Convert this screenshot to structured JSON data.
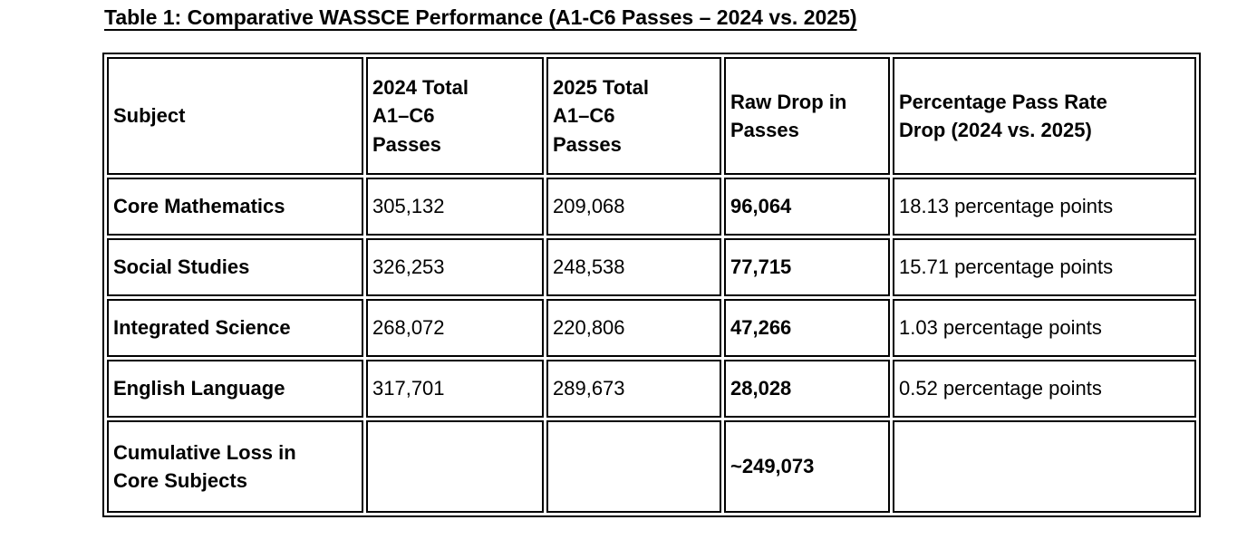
{
  "page": {
    "title": "Table 1: Comparative WASSCE Performance (A1-C6 Passes – 2024 vs. 2025)"
  },
  "table": {
    "columns": [
      {
        "label": "Subject"
      },
      {
        "label": "2024 Total\nA1–C6\nPasses"
      },
      {
        "label": "2025 Total\nA1–C6\nPasses"
      },
      {
        "label": "Raw Drop in\nPasses"
      },
      {
        "label": "Percentage Pass Rate\nDrop (2024 vs. 2025)"
      }
    ],
    "rows": [
      {
        "cells": [
          "Core Mathematics",
          "305,132",
          "209,068",
          "96,064",
          "18.13 percentage points"
        ]
      },
      {
        "cells": [
          "Social Studies",
          "326,253",
          "248,538",
          "77,715",
          "15.71 percentage points"
        ]
      },
      {
        "cells": [
          "Integrated Science",
          "268,072",
          "220,806",
          "47,266",
          "1.03 percentage points"
        ]
      },
      {
        "cells": [
          "English Language",
          "317,701",
          "289,673",
          "28,028",
          "0.52 percentage points"
        ]
      },
      {
        "cells": [
          "Cumulative Loss in\nCore Subjects",
          "",
          "",
          "~249,073",
          ""
        ]
      }
    ]
  }
}
